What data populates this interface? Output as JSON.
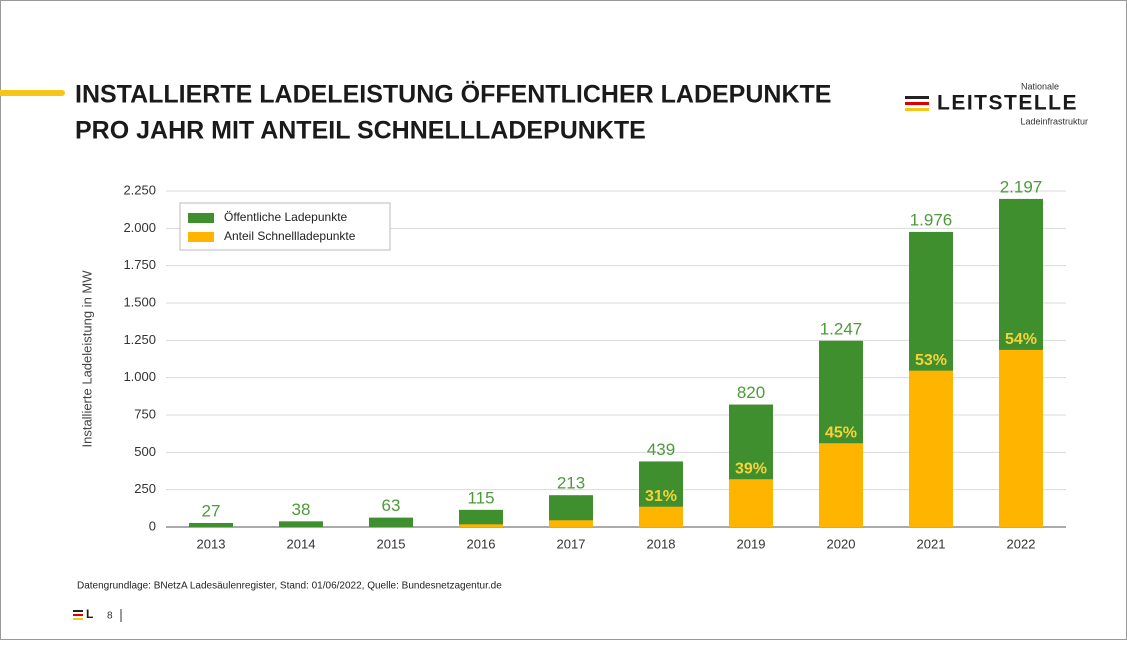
{
  "header": {
    "title_lines": [
      "INSTALLIERTE LADELEISTUNG ÖFFENTLICHER LADEPUNKTE",
      "PRO JAHR MIT ANTEIL SCHNELLLADEPUNKTE"
    ],
    "logo": {
      "top": "Nationale",
      "main": "LEITSTELLE",
      "bottom": "Ladeinfrastruktur"
    }
  },
  "chart_data": {
    "type": "bar",
    "overlap": true,
    "y_label": "Installierte Ladeleistung in MW",
    "categories": [
      "2013",
      "2014",
      "2015",
      "2016",
      "2017",
      "2018",
      "2019",
      "2020",
      "2021",
      "2022"
    ],
    "series": [
      {
        "name": "Öffentliche Ladepunkte",
        "color": "#3f8f2e",
        "values": [
          27,
          38,
          63,
          115,
          213,
          439,
          820,
          1247,
          1976,
          2197
        ],
        "value_labels": [
          "27",
          "38",
          "63",
          "115",
          "213",
          "439",
          "820",
          "1.247",
          "1.976",
          "2.197"
        ]
      },
      {
        "name": "Anteil Schnellladepunkte",
        "color": "#ffb400",
        "values": [
          0,
          0,
          0,
          18,
          45,
          136,
          320,
          561,
          1047,
          1186
        ],
        "share_labels": [
          null,
          null,
          null,
          null,
          null,
          "31%",
          "39%",
          "45%",
          "53%",
          "54%"
        ]
      }
    ],
    "ylim": [
      0,
      2250
    ],
    "yticks": [
      0,
      250,
      500,
      750,
      {
        "value": 1000,
        "label": "1.000"
      },
      {
        "value": 1250,
        "label": "1.250"
      },
      {
        "value": 1500,
        "label": "1.500"
      },
      {
        "value": 1750,
        "label": "1.750"
      },
      {
        "value": 2000,
        "label": "2.000"
      },
      {
        "value": 2250,
        "label": "2.250"
      }
    ],
    "grid": true,
    "legend": "upper left"
  },
  "footer": {
    "source": "Datengrundlage: BNetzA Ladesäulenregister, Stand: 01/06/2022, Quelle: Bundesnetzagentur.de",
    "page": "8",
    "logo": "L"
  }
}
